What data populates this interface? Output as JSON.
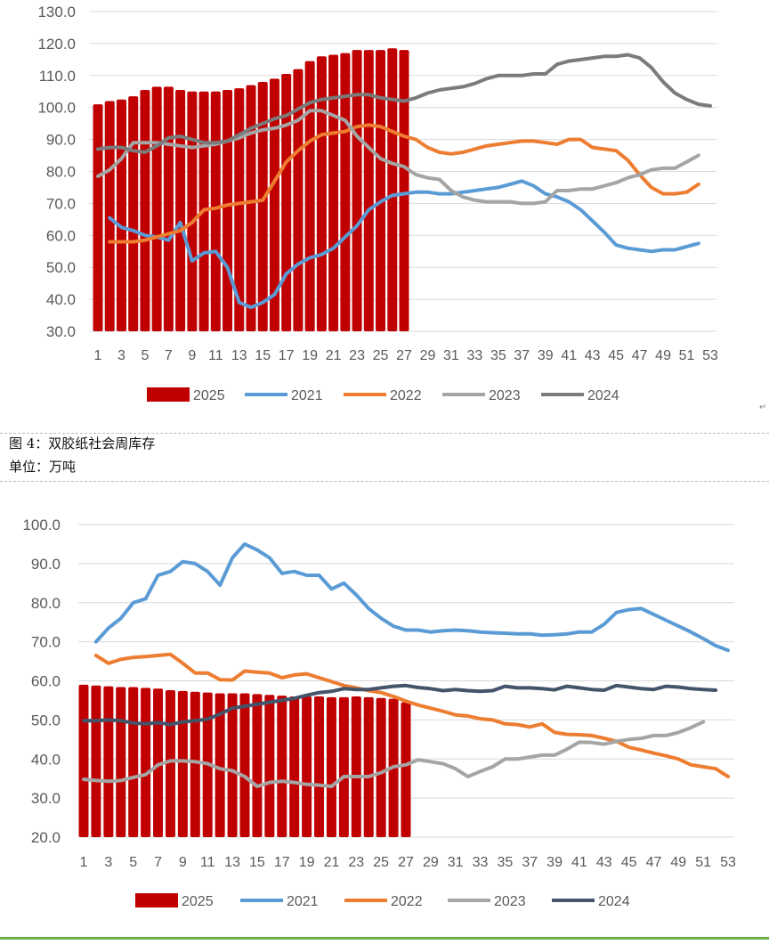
{
  "captions": {
    "figure_title": "图 4：双胶纸社会周库存",
    "unit": "单位：万吨",
    "return_mark": "↵"
  },
  "chart_data": [
    {
      "type": "bar+line",
      "title": "",
      "xlabel": "",
      "ylabel": "",
      "ylim": [
        30,
        130
      ],
      "yticks": [
        "30.0",
        "40.0",
        "50.0",
        "60.0",
        "70.0",
        "80.0",
        "90.0",
        "100.0",
        "110.0",
        "120.0",
        "130.0"
      ],
      "xticks": [
        "1",
        "3",
        "5",
        "7",
        "9",
        "11",
        "13",
        "15",
        "17",
        "19",
        "21",
        "23",
        "25",
        "27",
        "29",
        "31",
        "33",
        "35",
        "37",
        "39",
        "41",
        "43",
        "45",
        "47",
        "49",
        "51",
        "53"
      ],
      "grid": true,
      "legend": "bottom",
      "series": [
        {
          "name": "2025",
          "kind": "bar",
          "color": "#c00000",
          "start": 1,
          "values": [
            101,
            102,
            102.5,
            103.5,
            105.5,
            106.5,
            106.5,
            105.5,
            105,
            105,
            105,
            105.5,
            106,
            107,
            108,
            109,
            110.5,
            112,
            114.5,
            116,
            116.5,
            117,
            118,
            118,
            118,
            118.5,
            118
          ]
        },
        {
          "name": "2021",
          "kind": "line",
          "color": "#5b9bd5",
          "start": 2,
          "values": [
            65.5,
            62.5,
            61.5,
            60,
            59.5,
            58.5,
            64,
            52,
            54.5,
            55,
            50,
            39,
            37.5,
            39,
            41.5,
            48,
            51,
            53,
            54,
            56,
            59.5,
            63,
            68,
            70.5,
            72.5,
            73,
            73.5,
            73.5,
            73,
            73,
            73.5,
            74,
            74.5,
            75,
            76,
            77,
            75.5,
            73,
            72,
            70.5,
            68,
            64.5,
            61,
            57,
            56,
            55.5,
            55,
            55.5,
            55.5,
            56.5,
            57.5
          ]
        },
        {
          "name": "2022",
          "kind": "line",
          "color": "#ed7d31",
          "start": 2,
          "values": [
            58,
            58,
            58,
            58.5,
            59.5,
            60.5,
            61.5,
            64,
            68,
            68.5,
            69.5,
            70,
            70.5,
            71,
            77,
            83,
            86.5,
            89.5,
            91.5,
            92,
            92.5,
            94,
            94.5,
            94,
            92.5,
            91,
            90,
            87.5,
            86,
            85.5,
            86,
            87,
            88,
            88.5,
            89,
            89.5,
            89.5,
            89,
            88.5,
            90,
            90,
            87.5,
            87,
            86.5,
            83.5,
            79,
            75,
            73,
            73,
            73.5,
            76
          ]
        },
        {
          "name": "2023",
          "kind": "line",
          "color": "#a5a5a5",
          "start": 1,
          "values": [
            78.5,
            80.5,
            84,
            89,
            89,
            89,
            88.5,
            88,
            87.5,
            88,
            88.5,
            89.5,
            90.5,
            92,
            93,
            93.5,
            94.5,
            96,
            99,
            99,
            97.5,
            96,
            91,
            87.5,
            84,
            82.5,
            81.5,
            79,
            78,
            77.5,
            74,
            72,
            71,
            70.5,
            70.5,
            70.5,
            70,
            70,
            70.5,
            74,
            74,
            74.5,
            74.5,
            75.5,
            76.5,
            78,
            79,
            80.5,
            81,
            81,
            83,
            85
          ]
        },
        {
          "name": "2024",
          "kind": "line",
          "color": "#7b7b7b",
          "start": 1,
          "values": [
            87,
            87.5,
            87.5,
            86.5,
            86,
            88,
            90.5,
            91,
            90,
            89,
            89,
            89.5,
            91.5,
            93.5,
            95,
            96.5,
            97.5,
            99.5,
            101.5,
            102.5,
            103,
            103.5,
            104,
            104,
            103,
            102.5,
            102,
            103,
            104.5,
            105.5,
            106,
            106.5,
            107.5,
            109,
            110,
            110,
            110,
            110.5,
            110.5,
            113.5,
            114.5,
            115,
            115.5,
            116,
            116,
            116.5,
            115.5,
            112.5,
            108,
            104.5,
            102.5,
            101,
            100.5
          ]
        }
      ]
    },
    {
      "type": "bar+line",
      "title": "双胶纸社会周库存",
      "xlabel": "",
      "ylabel": "万吨",
      "ylim": [
        20,
        100
      ],
      "yticks": [
        "20.0",
        "30.0",
        "40.0",
        "50.0",
        "60.0",
        "70.0",
        "80.0",
        "90.0",
        "100.0"
      ],
      "xticks": [
        "1",
        "3",
        "5",
        "7",
        "9",
        "11",
        "13",
        "15",
        "17",
        "19",
        "21",
        "23",
        "25",
        "27",
        "29",
        "31",
        "33",
        "35",
        "37",
        "39",
        "41",
        "43",
        "45",
        "47",
        "49",
        "51",
        "53"
      ],
      "grid": true,
      "legend": "bottom",
      "series": [
        {
          "name": "2025",
          "kind": "bar",
          "color": "#c00000",
          "start": 1,
          "values": [
            59,
            58.8,
            58.6,
            58.4,
            58.4,
            58.2,
            58,
            57.6,
            57.4,
            57.2,
            57,
            56.8,
            56.8,
            56.8,
            56.6,
            56.4,
            56.2,
            56,
            56,
            56,
            55.8,
            55.8,
            56,
            55.8,
            55.6,
            55.4,
            54.5
          ]
        },
        {
          "name": "2021",
          "kind": "line",
          "color": "#5b9bd5",
          "start": 2,
          "values": [
            70,
            73.5,
            76,
            80,
            81,
            87,
            88,
            90.5,
            90,
            88,
            84.5,
            91.5,
            95,
            93.5,
            91.5,
            87.5,
            88,
            87,
            87,
            83.5,
            85,
            82,
            78.5,
            76,
            74,
            73,
            73,
            72.5,
            72.8,
            73,
            72.8,
            72.5,
            72.3,
            72.2,
            72,
            72,
            71.7,
            71.8,
            72,
            72.5,
            72.5,
            74.5,
            77.5,
            78.2,
            78.5,
            77,
            75.5,
            74,
            72.5,
            70.8,
            69,
            67.8
          ]
        },
        {
          "name": "2022",
          "kind": "line",
          "color": "#ed7d31",
          "start": 2,
          "values": [
            66.5,
            64.5,
            65.5,
            66,
            66.2,
            66.5,
            66.8,
            64.5,
            62,
            62,
            60.3,
            60.2,
            62.5,
            62.2,
            62,
            60.8,
            61.5,
            61.8,
            60.8,
            59.8,
            58.8,
            58.2,
            57.5,
            57,
            56,
            54.8,
            53.8,
            53,
            52.2,
            51.3,
            51,
            50.3,
            50,
            49,
            48.8,
            48.2,
            49,
            46.8,
            46.3,
            46.2,
            46,
            45.3,
            44.5,
            43,
            42.3,
            41.5,
            40.8,
            40,
            38.5,
            38,
            37.5,
            35.5
          ]
        },
        {
          "name": "2023",
          "kind": "line",
          "color": "#a5a5a5",
          "start": 1,
          "values": [
            34.8,
            34.5,
            34.3,
            34.5,
            35.3,
            36,
            38.5,
            39.5,
            39.5,
            39.3,
            38.8,
            37.5,
            37,
            35.5,
            33,
            34,
            34.3,
            34,
            33.5,
            33.3,
            33,
            35.5,
            35.5,
            35.5,
            36.5,
            38,
            38.5,
            39.8,
            39.3,
            38.8,
            37.5,
            35.5,
            36.8,
            38,
            40,
            40,
            40.5,
            41,
            41,
            42.5,
            44.3,
            44.2,
            43.8,
            44.5,
            45,
            45.3,
            46,
            46,
            46.8,
            48,
            49.5
          ]
        },
        {
          "name": "2024",
          "kind": "line",
          "color": "#44546a",
          "start": 1,
          "values": [
            49.8,
            49.8,
            50,
            49.8,
            49.2,
            49,
            49.3,
            48.8,
            49.5,
            49.8,
            50.2,
            51.5,
            53,
            53.5,
            54,
            54.5,
            55,
            55.5,
            56.3,
            57,
            57.3,
            58,
            57.8,
            57.8,
            58.2,
            58.6,
            58.8,
            58.3,
            58,
            57.5,
            57.8,
            57.5,
            57.3,
            57.5,
            58.6,
            58.2,
            58.2,
            58,
            57.7,
            58.6,
            58.2,
            57.8,
            57.6,
            58.8,
            58.4,
            58,
            57.8,
            58.6,
            58.4,
            58,
            57.8,
            57.6
          ]
        }
      ]
    }
  ]
}
